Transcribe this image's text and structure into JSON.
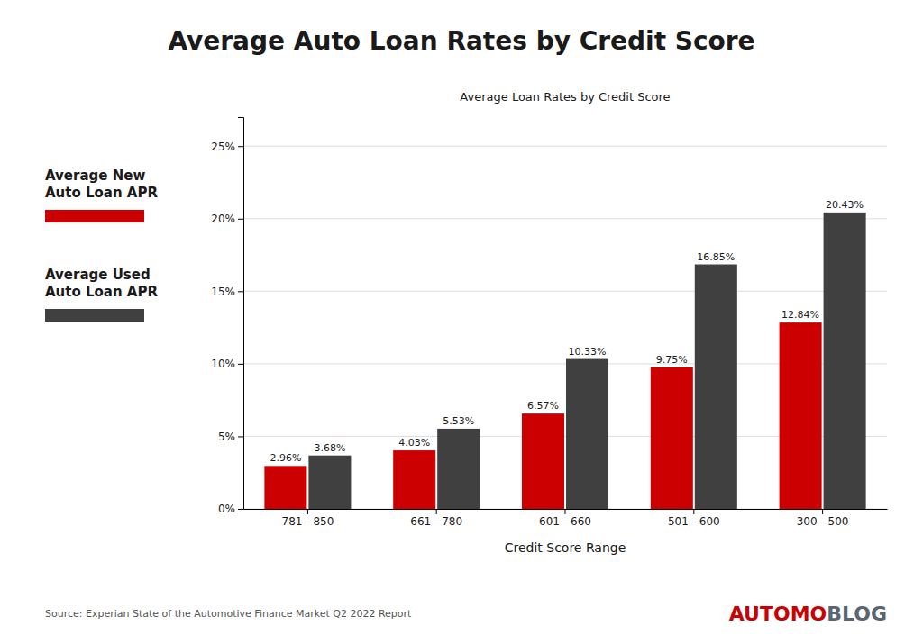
{
  "chart_data": {
    "type": "bar",
    "title": "Average Auto Loan Rates by Credit Score",
    "subtitle": "Average Loan Rates by Credit Score",
    "x_label": "Credit Score Range",
    "categories": [
      "781—850",
      "661—780",
      "601—660",
      "501—600",
      "300—500"
    ],
    "series": [
      {
        "name": "Average New\nAuto Loan APR",
        "color": "#cc0000",
        "values": [
          2.96,
          4.03,
          6.57,
          9.75,
          12.84
        ],
        "value_labels": [
          "2.96%",
          "4.03%",
          "6.57%",
          "9.75%",
          "12.84%"
        ]
      },
      {
        "name": "Average Used\nAuto Loan APR",
        "color": "#404040",
        "values": [
          3.68,
          5.53,
          10.33,
          16.85,
          20.43
        ],
        "value_labels": [
          "3.68%",
          "5.53%",
          "10.33%",
          "16.85%",
          "20.43%"
        ]
      }
    ],
    "ylim": [
      0,
      27
    ],
    "yticks": [
      {
        "value": 0,
        "label": "0%"
      },
      {
        "value": 5,
        "label": "5%"
      },
      {
        "value": 10,
        "label": "10%"
      },
      {
        "value": 15,
        "label": "15%"
      },
      {
        "value": 20,
        "label": "20%"
      },
      {
        "value": 25,
        "label": "25%"
      }
    ],
    "grid": true,
    "data_labels": true,
    "annotations": [
      {
        "text": "Source: Experian State of the Automotive Finance Market Q2 2022 Report"
      },
      {
        "text": "AUTOMO",
        "color": "#cc0000"
      },
      {
        "text": "BLOG",
        "color": "#5a6472"
      }
    ]
  }
}
